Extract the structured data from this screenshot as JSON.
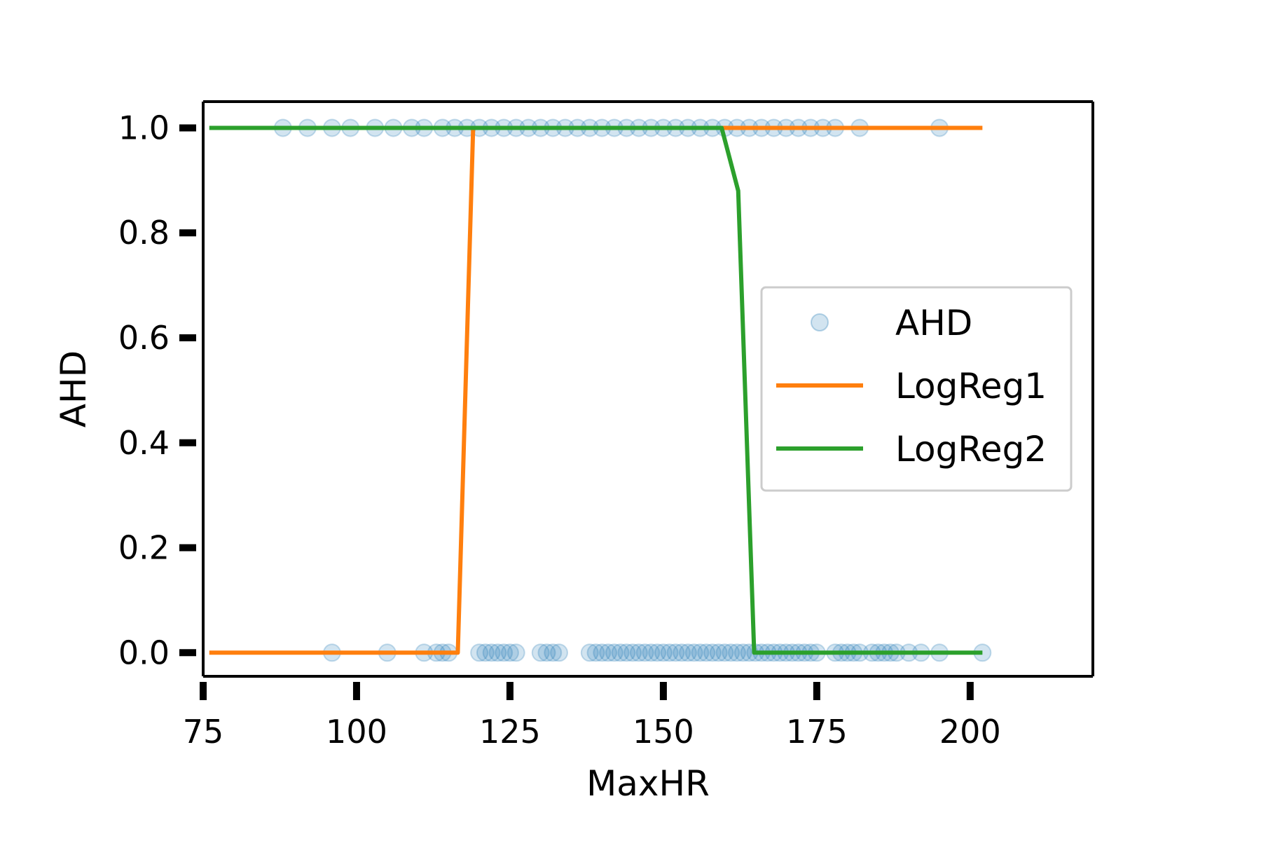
{
  "chart_data": {
    "type": "scatter",
    "xlabel": "MaxHR",
    "ylabel": "AHD",
    "xlim": [
      75,
      220
    ],
    "ylim": [
      -0.045,
      1.05
    ],
    "xticks": [
      75,
      100,
      125,
      150,
      175,
      200
    ],
    "xtick_labels": [
      "75",
      "100",
      "125",
      "150",
      "175",
      "200"
    ],
    "yticks": [
      0.0,
      0.2,
      0.4,
      0.6,
      0.8,
      1.0
    ],
    "ytick_labels": [
      "0.0",
      "0.2",
      "0.4",
      "0.6",
      "0.8",
      "1.0"
    ],
    "grid": false,
    "legend_position": "center-right",
    "legend": [
      "AHD",
      "LogReg1",
      "LogReg2"
    ],
    "series": [
      {
        "name": "AHD",
        "kind": "scatter",
        "color": "#1f77b4",
        "alpha": 0.2,
        "x": [
          88,
          92,
          96,
          99,
          103,
          106,
          109,
          111,
          114,
          116,
          118,
          120,
          122,
          124,
          126,
          128,
          130,
          132,
          134,
          136,
          138,
          140,
          142,
          144,
          146,
          148,
          150,
          152,
          154,
          156,
          158,
          160,
          162,
          164,
          166,
          168,
          170,
          172,
          174,
          176,
          178,
          182,
          195,
          96,
          105,
          111,
          113,
          114,
          115,
          120,
          121,
          122,
          123,
          124,
          125,
          126,
          130,
          131,
          132,
          133,
          138,
          139,
          140,
          141,
          142,
          143,
          144,
          145,
          146,
          147,
          148,
          149,
          150,
          151,
          152,
          153,
          154,
          155,
          156,
          157,
          158,
          159,
          160,
          161,
          162,
          163,
          164,
          165,
          166,
          167,
          168,
          169,
          170,
          171,
          172,
          173,
          174,
          175,
          178,
          179,
          180,
          181,
          182,
          184,
          185,
          186,
          187,
          188,
          190,
          192,
          195,
          202
        ],
        "y": [
          1,
          1,
          1,
          1,
          1,
          1,
          1,
          1,
          1,
          1,
          1,
          1,
          1,
          1,
          1,
          1,
          1,
          1,
          1,
          1,
          1,
          1,
          1,
          1,
          1,
          1,
          1,
          1,
          1,
          1,
          1,
          1,
          1,
          1,
          1,
          1,
          1,
          1,
          1,
          1,
          1,
          1,
          1,
          0,
          0,
          0,
          0,
          0,
          0,
          0,
          0,
          0,
          0,
          0,
          0,
          0,
          0,
          0,
          0,
          0,
          0,
          0,
          0,
          0,
          0,
          0,
          0,
          0,
          0,
          0,
          0,
          0,
          0,
          0,
          0,
          0,
          0,
          0,
          0,
          0,
          0,
          0,
          0,
          0,
          0,
          0,
          0,
          0,
          0,
          0,
          0,
          0,
          0,
          0,
          0,
          0,
          0,
          0,
          0,
          0,
          0,
          0,
          0,
          0,
          0,
          0,
          0,
          0,
          0,
          0,
          0,
          0
        ]
      },
      {
        "name": "LogReg1",
        "kind": "line",
        "color": "#ff7f0e",
        "x": [
          76,
          116.5,
          119,
          202
        ],
        "y": [
          0,
          0,
          1,
          1
        ]
      },
      {
        "name": "LogReg2",
        "kind": "line",
        "color": "#2ca02c",
        "x": [
          76,
          159.5,
          162.2,
          164.8,
          202
        ],
        "y": [
          1,
          1,
          0.88,
          0,
          0
        ]
      }
    ]
  }
}
